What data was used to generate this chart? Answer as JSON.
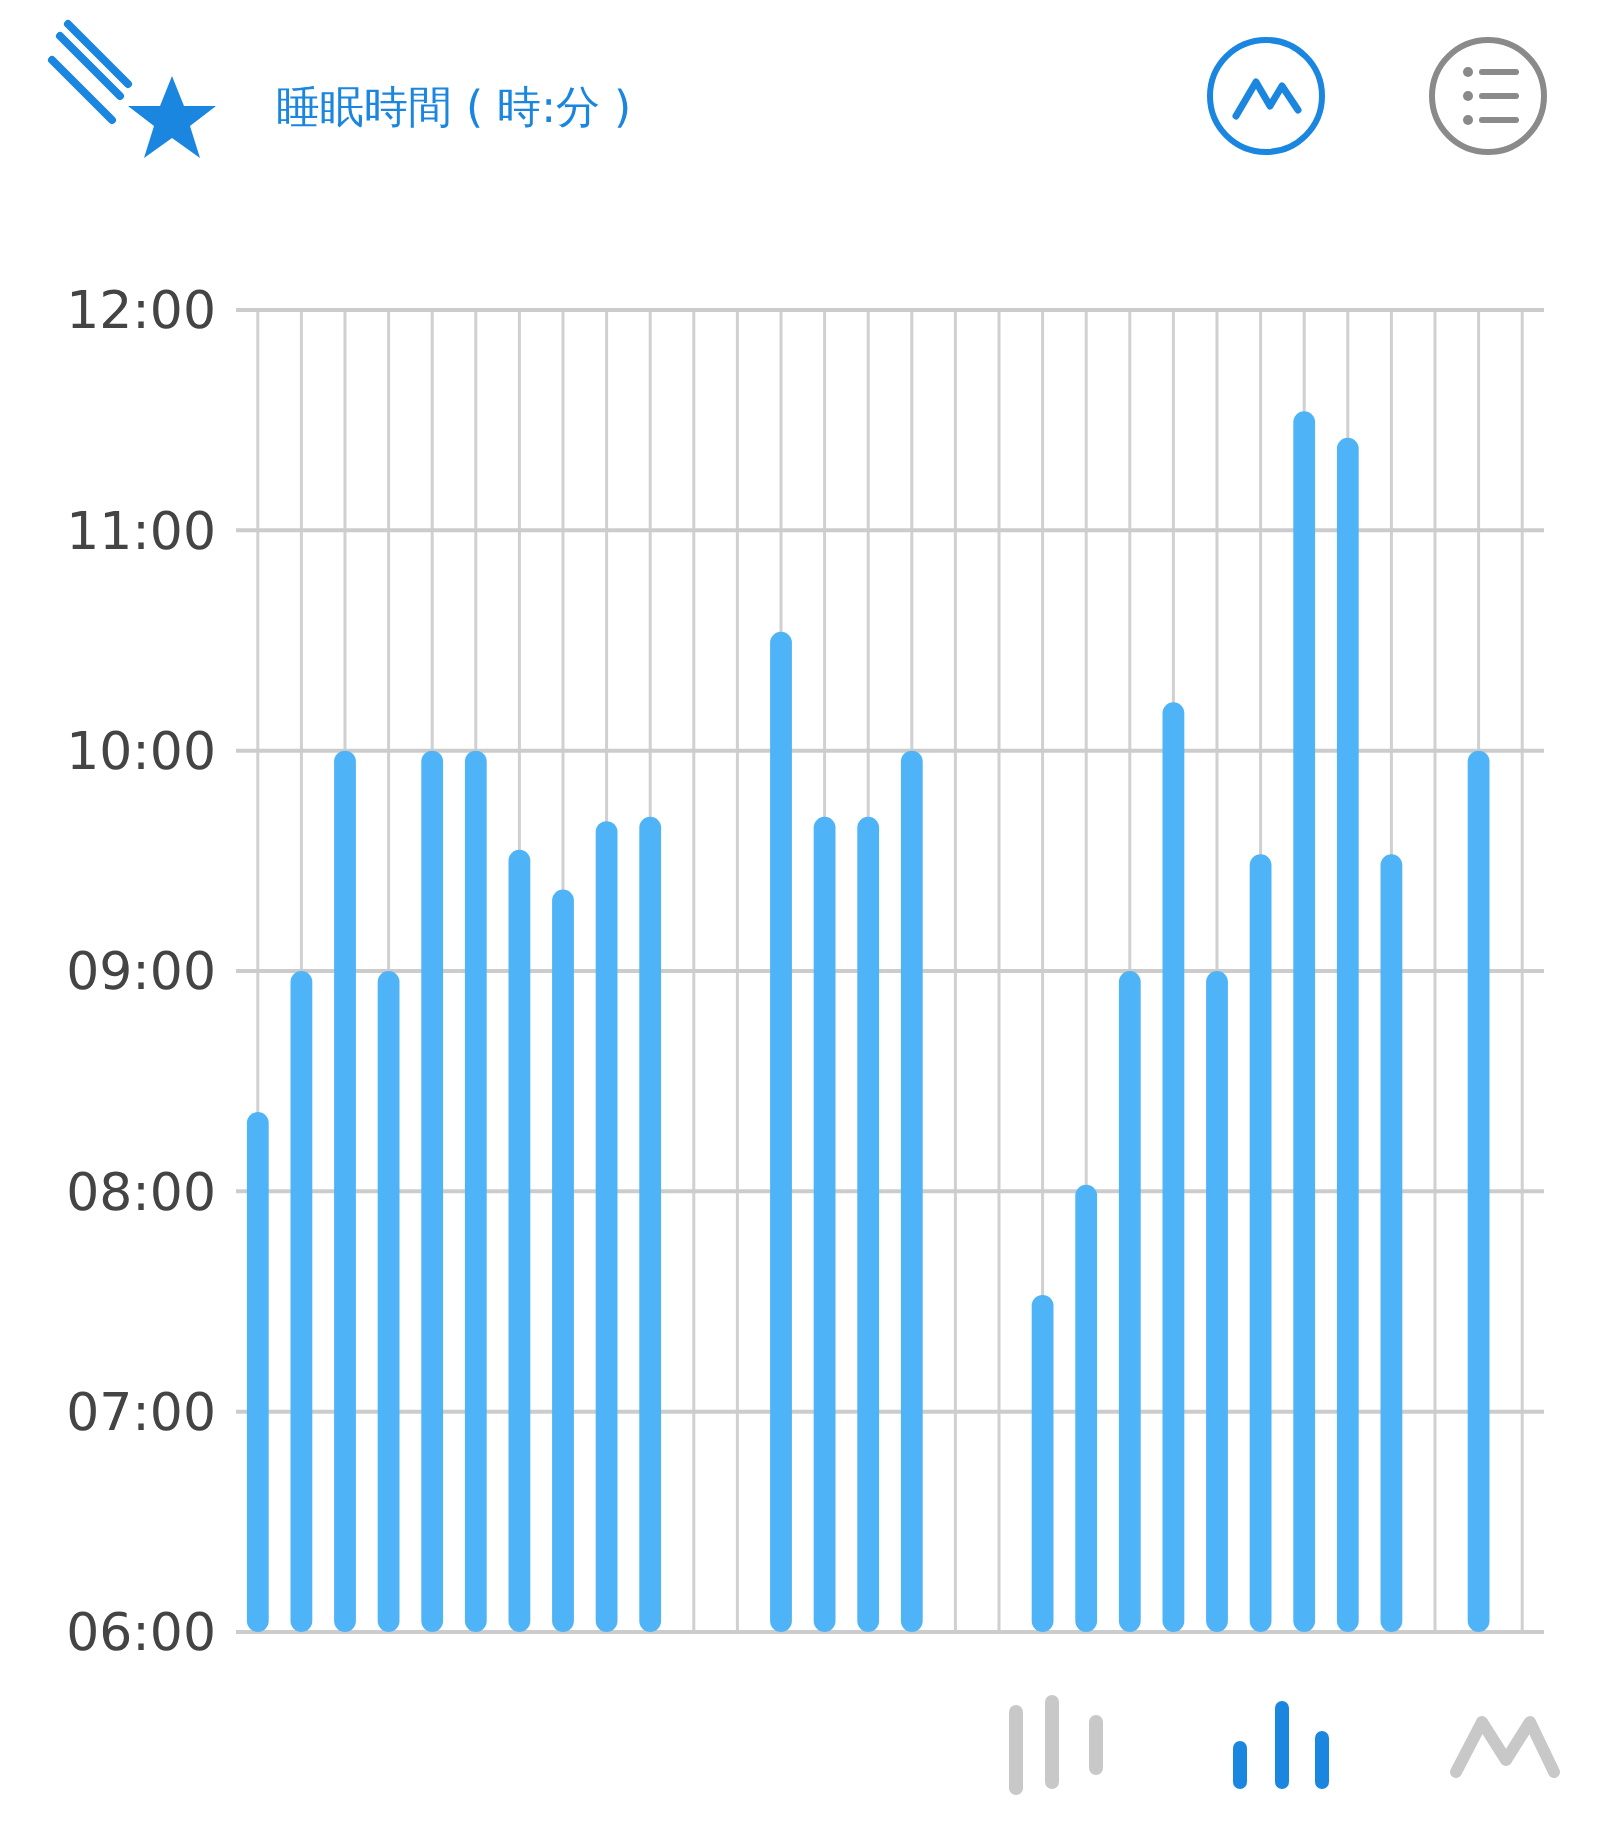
{
  "chart_data": {
    "type": "bar",
    "title": "睡眠時間 ( 時:分 )",
    "categories": [
      null,
      null,
      null,
      null,
      null,
      null,
      null,
      null,
      null,
      null,
      null,
      null,
      null,
      null,
      null,
      null,
      null,
      null,
      null,
      null,
      null,
      null,
      null,
      null,
      null,
      null,
      null,
      null,
      null,
      null
    ],
    "values": [
      8.36,
      9.0,
      10.0,
      9.0,
      10.0,
      10.0,
      9.55,
      9.37,
      9.68,
      9.7,
      null,
      null,
      10.54,
      9.7,
      9.7,
      10.0,
      null,
      null,
      7.53,
      8.03,
      9.0,
      10.22,
      9.0,
      9.53,
      11.54,
      11.42,
      9.53,
      null,
      10.0,
      null
    ],
    "color": "#4fb3f7",
    "ylim": [
      6,
      12
    ],
    "yticks": [
      {
        "value": 6,
        "label": "06:00"
      },
      {
        "value": 7,
        "label": "07:00"
      },
      {
        "value": 8,
        "label": "08:00"
      },
      {
        "value": 9,
        "label": "09:00"
      },
      {
        "value": 10,
        "label": "10:00"
      },
      {
        "value": 11,
        "label": "11:00"
      },
      {
        "value": 12,
        "label": "12:00"
      }
    ],
    "grid": true
  }
}
